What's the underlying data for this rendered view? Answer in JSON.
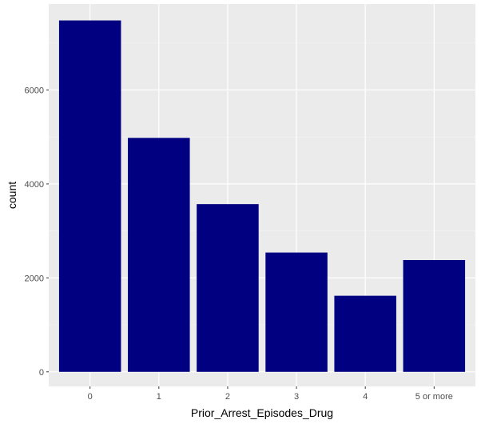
{
  "chart_data": {
    "type": "bar",
    "title": "",
    "xlabel": "Prior_Arrest_Episodes_Drug",
    "ylabel": "count",
    "categories": [
      "0",
      "1",
      "2",
      "3",
      "4",
      "5 or more"
    ],
    "values": [
      7480,
      4980,
      3570,
      2540,
      1620,
      2380
    ],
    "ylim": [
      -310,
      7830
    ],
    "yticks": [
      0,
      2000,
      4000,
      6000
    ],
    "grid": true,
    "legend": "none",
    "colors": {
      "bar": "#000080",
      "panel": "#ebebeb",
      "grid_major": "#ffffff",
      "grid_minor": "#f5f5f5",
      "tick_text": "#4d4d4d",
      "tick_mark": "#333333",
      "title_text": "#000000"
    }
  }
}
